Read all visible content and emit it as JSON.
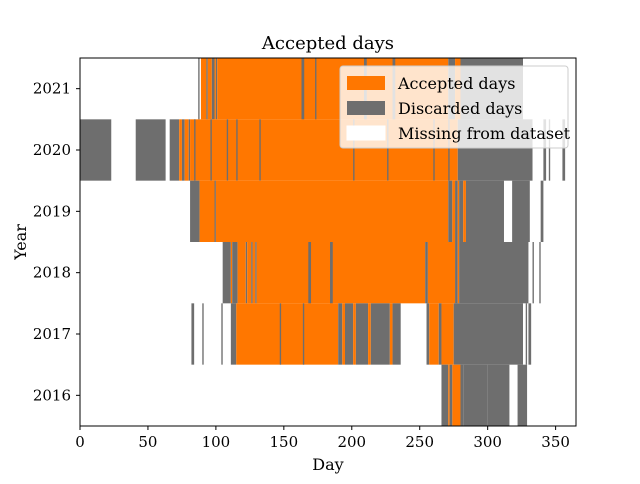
{
  "chart_data": {
    "type": "heatmap",
    "title": "Accepted days",
    "xlabel": "Day",
    "ylabel": "Year",
    "xlim": [
      0,
      365
    ],
    "ylim": [
      2015.5,
      2021.5
    ],
    "xticks": [
      0,
      50,
      100,
      150,
      200,
      250,
      300,
      350
    ],
    "yticks": [
      2016,
      2017,
      2018,
      2019,
      2020,
      2021
    ],
    "grid": false,
    "legend_position": "top-right",
    "colors": {
      "accepted": "#ff7700",
      "discarded": "#6e6e6e",
      "missing": "#ffffff"
    },
    "legend": [
      {
        "key": "accepted",
        "label": "Accepted days"
      },
      {
        "key": "discarded",
        "label": "Discarded days"
      },
      {
        "key": "missing",
        "label": "Missing from dataset"
      }
    ],
    "years": [
      {
        "year": 2021,
        "segments": [
          [
            87,
            88,
            "discarded"
          ],
          [
            89,
            93,
            "accepted"
          ],
          [
            93,
            94,
            "discarded"
          ],
          [
            94,
            97,
            "accepted"
          ],
          [
            97,
            99,
            "discarded"
          ],
          [
            99,
            100,
            "accepted"
          ],
          [
            100,
            101,
            "discarded"
          ],
          [
            101,
            271,
            "accepted"
          ],
          [
            163,
            165,
            "discarded"
          ],
          [
            173,
            174,
            "discarded"
          ],
          [
            209,
            211,
            "discarded"
          ],
          [
            230,
            232,
            "discarded"
          ],
          [
            271,
            276,
            "discarded"
          ],
          [
            276,
            280,
            "accepted"
          ],
          [
            280,
            326,
            "discarded"
          ]
        ]
      },
      {
        "year": 2020,
        "segments": [
          [
            0,
            23,
            "discarded"
          ],
          [
            41,
            63,
            "discarded"
          ],
          [
            66,
            73,
            "discarded"
          ],
          [
            73,
            75,
            "accepted"
          ],
          [
            75,
            77,
            "discarded"
          ],
          [
            77,
            80,
            "accepted"
          ],
          [
            80,
            81,
            "discarded"
          ],
          [
            81,
            278,
            "accepted"
          ],
          [
            84,
            85,
            "discarded"
          ],
          [
            96,
            97,
            "discarded"
          ],
          [
            108,
            109,
            "discarded"
          ],
          [
            115,
            116,
            "discarded"
          ],
          [
            132,
            133,
            "discarded"
          ],
          [
            201,
            202,
            "discarded"
          ],
          [
            226,
            227,
            "discarded"
          ],
          [
            260,
            261,
            "discarded"
          ],
          [
            271,
            272,
            "discarded"
          ],
          [
            278,
            333,
            "discarded"
          ],
          [
            341,
            343,
            "discarded"
          ],
          [
            345,
            346,
            "discarded"
          ],
          [
            355,
            357,
            "discarded"
          ]
        ]
      },
      {
        "year": 2019,
        "segments": [
          [
            81,
            88,
            "discarded"
          ],
          [
            88,
            99,
            "accepted"
          ],
          [
            99,
            100,
            "discarded"
          ],
          [
            100,
            271,
            "accepted"
          ],
          [
            271,
            274,
            "discarded"
          ],
          [
            274,
            276,
            "accepted"
          ],
          [
            276,
            278,
            "discarded"
          ],
          [
            278,
            279,
            "accepted"
          ],
          [
            279,
            282,
            "discarded"
          ],
          [
            282,
            284,
            "accepted"
          ],
          [
            284,
            312,
            "discarded"
          ],
          [
            318,
            331,
            "discarded"
          ],
          [
            339,
            341,
            "discarded"
          ]
        ]
      },
      {
        "year": 2018,
        "segments": [
          [
            105,
            111,
            "discarded"
          ],
          [
            111,
            112,
            "accepted"
          ],
          [
            112,
            116,
            "discarded"
          ],
          [
            116,
            122,
            "accepted"
          ],
          [
            122,
            123,
            "discarded"
          ],
          [
            123,
            126,
            "accepted"
          ],
          [
            126,
            127,
            "discarded"
          ],
          [
            127,
            129,
            "accepted"
          ],
          [
            129,
            130,
            "discarded"
          ],
          [
            130,
            254,
            "accepted"
          ],
          [
            168,
            170,
            "discarded"
          ],
          [
            184,
            186,
            "discarded"
          ],
          [
            254,
            256,
            "discarded"
          ],
          [
            256,
            276,
            "accepted"
          ],
          [
            276,
            278,
            "discarded"
          ],
          [
            278,
            279,
            "accepted"
          ],
          [
            279,
            330,
            "discarded"
          ],
          [
            333,
            334,
            "discarded"
          ],
          [
            338,
            339,
            "discarded"
          ]
        ]
      },
      {
        "year": 2017,
        "segments": [
          [
            82,
            84,
            "discarded"
          ],
          [
            90,
            91,
            "discarded"
          ],
          [
            104,
            105,
            "discarded"
          ],
          [
            111,
            115,
            "discarded"
          ],
          [
            115,
            190,
            "accepted"
          ],
          [
            147,
            148,
            "discarded"
          ],
          [
            164,
            165,
            "discarded"
          ],
          [
            190,
            193,
            "discarded"
          ],
          [
            193,
            195,
            "accepted"
          ],
          [
            195,
            201,
            "discarded"
          ],
          [
            201,
            203,
            "accepted"
          ],
          [
            203,
            212,
            "discarded"
          ],
          [
            212,
            214,
            "accepted"
          ],
          [
            214,
            228,
            "discarded"
          ],
          [
            228,
            230,
            "accepted"
          ],
          [
            230,
            236,
            "discarded"
          ],
          [
            255,
            257,
            "discarded"
          ],
          [
            257,
            264,
            "accepted"
          ],
          [
            264,
            266,
            "discarded"
          ],
          [
            266,
            275,
            "accepted"
          ],
          [
            275,
            326,
            "discarded"
          ],
          [
            328,
            329,
            "discarded"
          ],
          [
            330,
            332,
            "discarded"
          ]
        ]
      },
      {
        "year": 2016,
        "segments": [
          [
            266,
            271,
            "discarded"
          ],
          [
            271,
            272,
            "accepted"
          ],
          [
            272,
            274,
            "discarded"
          ],
          [
            274,
            280,
            "accepted"
          ],
          [
            280,
            282,
            "discarded"
          ],
          [
            282,
            300,
            "discarded"
          ],
          [
            300,
            316,
            "discarded"
          ],
          [
            322,
            329,
            "discarded"
          ]
        ]
      }
    ]
  }
}
